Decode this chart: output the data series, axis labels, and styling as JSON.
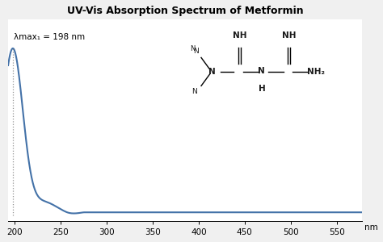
{
  "title": "UV-Vis Absorption Spectrum of Metformin",
  "xlabel": "nm",
  "xlim": [
    193,
    578
  ],
  "ylim": [
    -0.03,
    1.08
  ],
  "xticks": [
    200,
    250,
    300,
    350,
    400,
    450,
    500,
    550
  ],
  "line_color": "#4472a8",
  "line_width": 1.5,
  "peak_wavelength": 198,
  "annotation_text": "λmax₁ = 198 nm",
  "background_color": "#f0f0f0",
  "plot_bg": "#ffffff",
  "title_fontsize": 9,
  "tick_fontsize": 7.5,
  "annotation_fontsize": 7.5,
  "struct_color": "#1a1a1a"
}
